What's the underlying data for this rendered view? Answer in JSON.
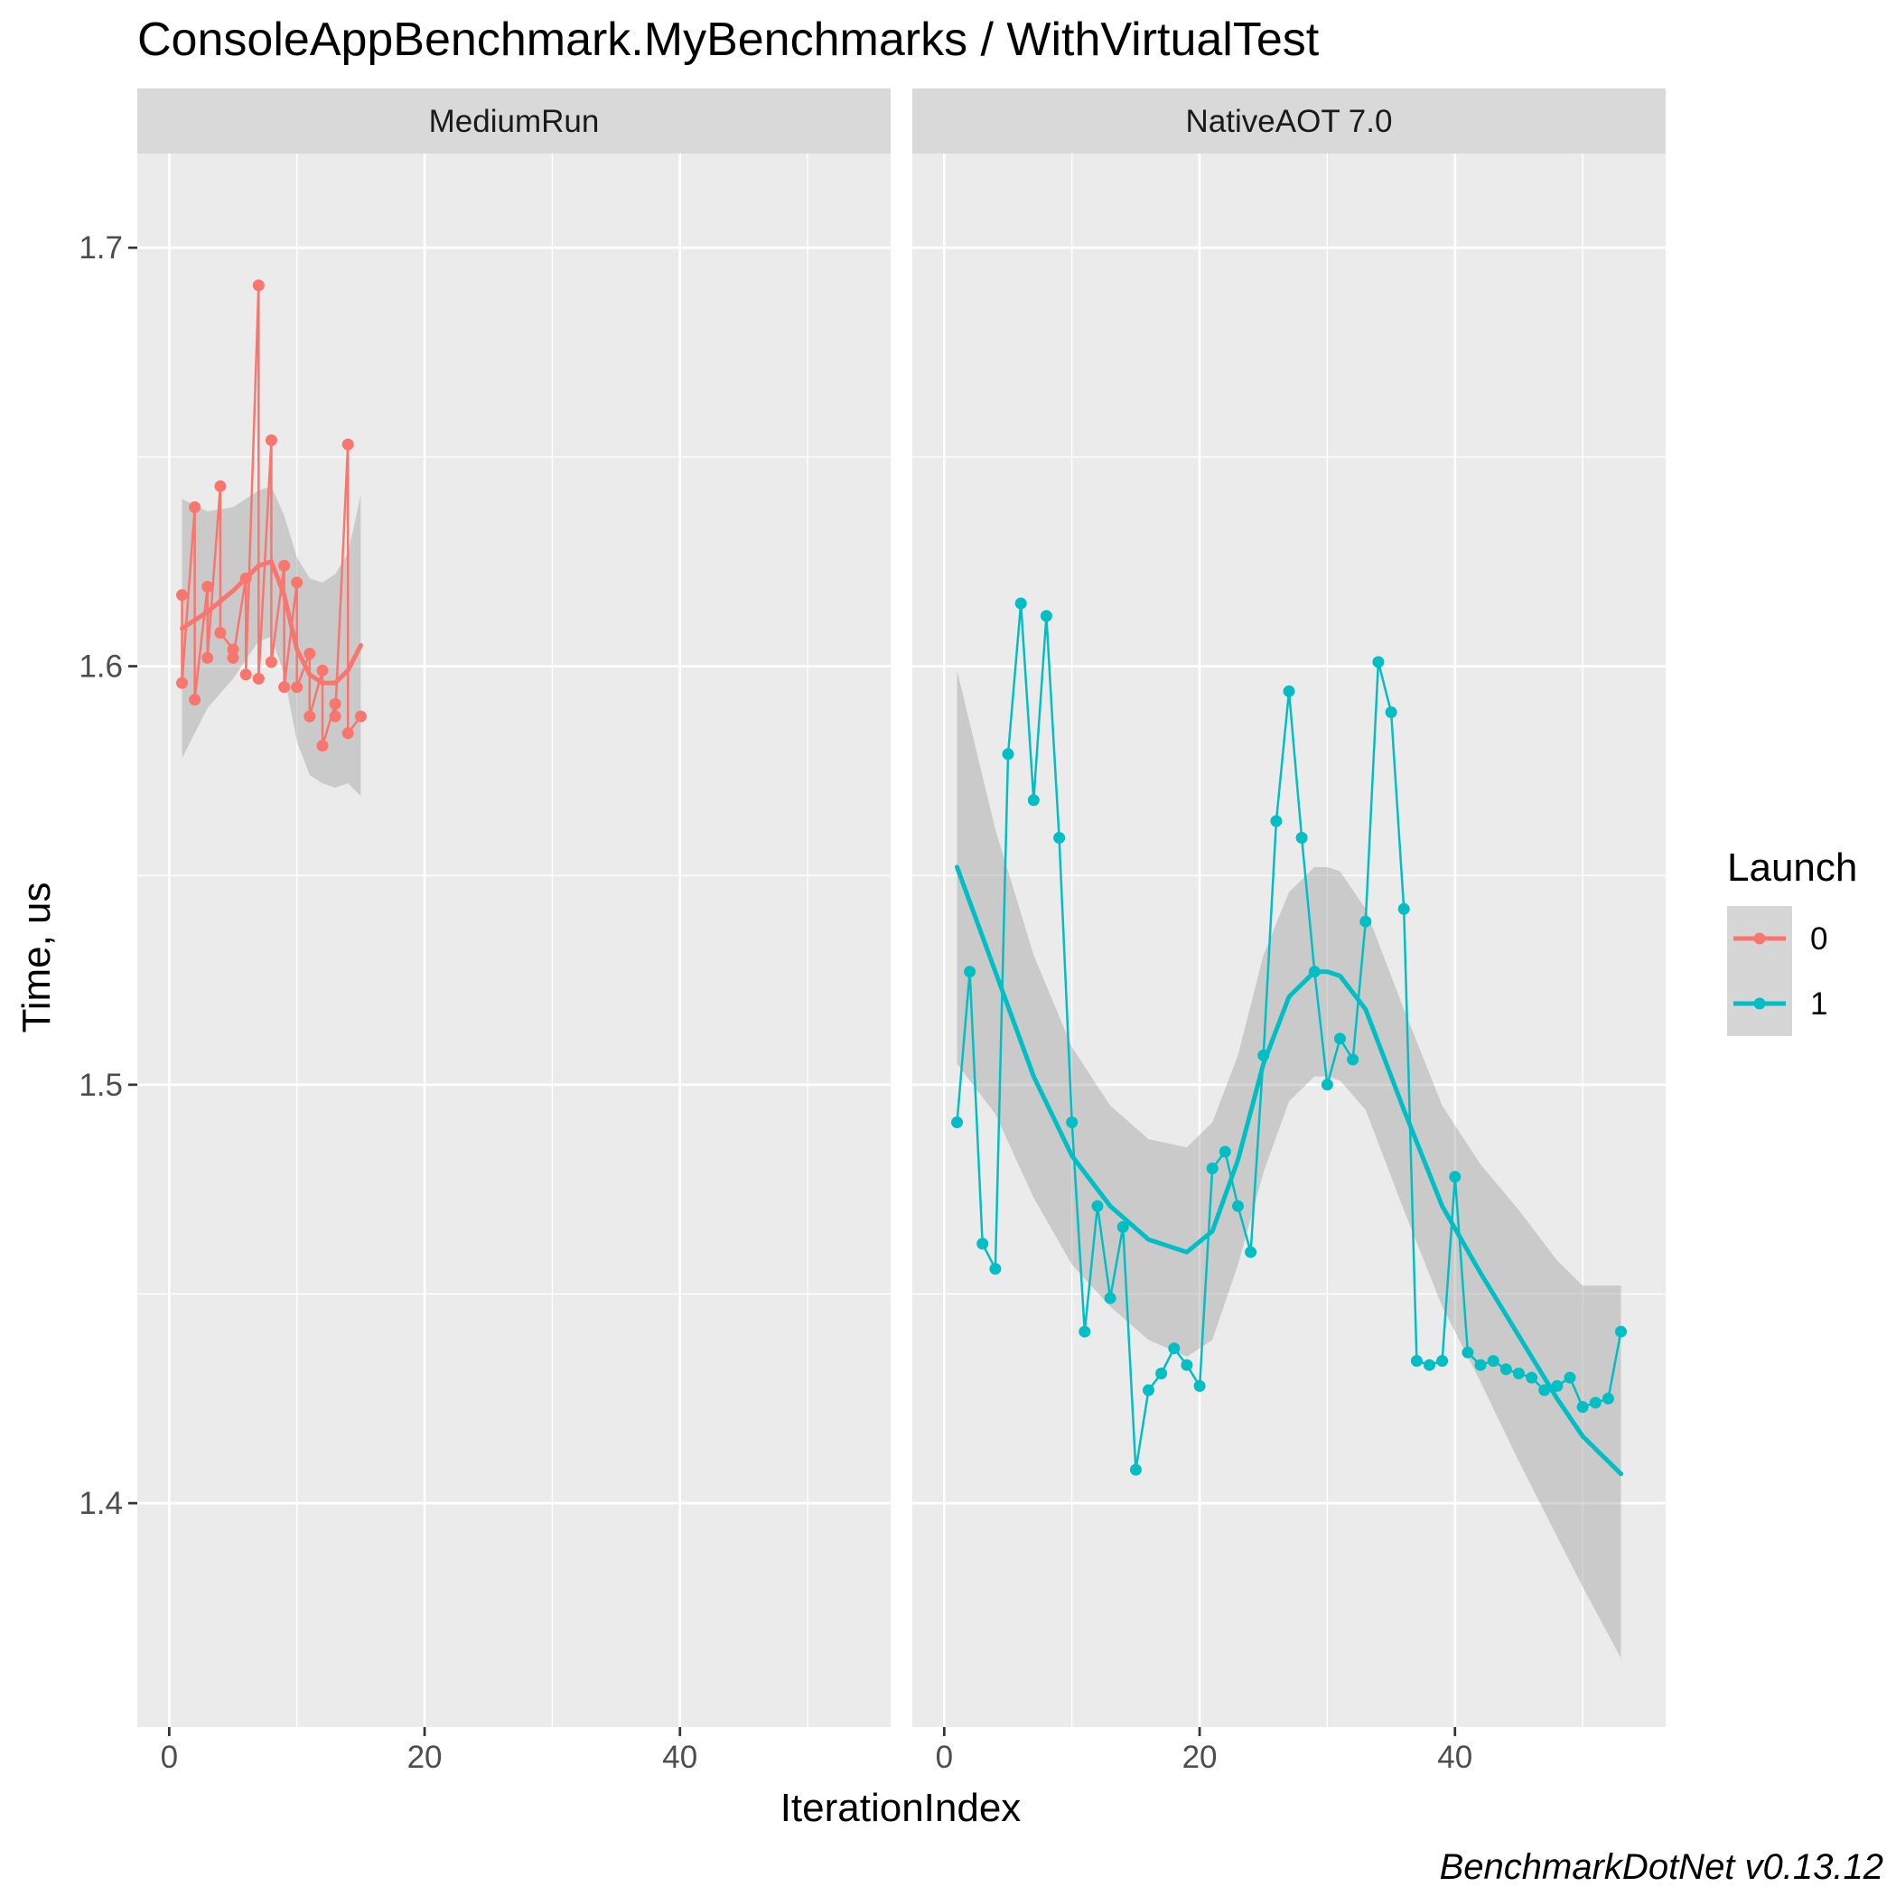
{
  "chart_data": {
    "type": "line",
    "title": "ConsoleAppBenchmark.MyBenchmarks / WithVirtualTest",
    "xlabel": "IterationIndex",
    "ylabel": "Time, us",
    "caption": "BenchmarkDotNet v0.13.12",
    "xlim": [
      -2.5,
      56.5
    ],
    "ylim": [
      1.3465,
      1.7225
    ],
    "x_ticks": [
      0,
      20,
      40
    ],
    "y_ticks": [
      1.4,
      1.5,
      1.6,
      1.7
    ],
    "y_tick_labels": [
      "1.4",
      "1.5",
      "1.6",
      "1.7"
    ],
    "legend": {
      "title": "Launch",
      "position": "right",
      "entries": [
        {
          "label": "0",
          "color": "#F8766D"
        },
        {
          "label": "1",
          "color": "#00BFC4"
        }
      ]
    },
    "colors": {
      "panel_bg": "#EBEBEB",
      "strip_bg": "#D9D9D9",
      "grid": "#FFFFFF",
      "ribbon": "#999999"
    },
    "facets": [
      {
        "strip_label": "MediumRun",
        "series": [
          {
            "name": "0",
            "color": "#F8766D",
            "x": [
              1,
              1,
              2,
              2,
              3,
              3,
              4,
              4,
              5,
              5,
              6,
              6,
              7,
              7,
              8,
              8,
              9,
              9,
              10,
              10,
              11,
              11,
              12,
              12,
              13,
              13,
              14,
              14,
              15
            ],
            "y": [
              1.617,
              1.596,
              1.638,
              1.592,
              1.619,
              1.602,
              1.643,
              1.608,
              1.604,
              1.602,
              1.621,
              1.598,
              1.691,
              1.597,
              1.654,
              1.601,
              1.624,
              1.595,
              1.62,
              1.595,
              1.603,
              1.588,
              1.599,
              1.581,
              1.591,
              1.588,
              1.653,
              1.584,
              1.588
            ],
            "smooth": {
              "x": [
                1,
                3,
                5,
                7,
                8,
                9,
                10,
                11,
                12,
                13,
                14,
                15
              ],
              "y": [
                1.609,
                1.613,
                1.618,
                1.624,
                1.625,
                1.617,
                1.604,
                1.598,
                1.596,
                1.596,
                1.599,
                1.605
              ],
              "lower": [
                1.578,
                1.59,
                1.597,
                1.606,
                1.607,
                1.598,
                1.582,
                1.574,
                1.572,
                1.571,
                1.572,
                1.569
              ],
              "upper": [
                1.64,
                1.637,
                1.638,
                1.642,
                1.643,
                1.636,
                1.626,
                1.621,
                1.62,
                1.622,
                1.627,
                1.641
              ]
            }
          }
        ]
      },
      {
        "strip_label": "NativeAOT 7.0",
        "series": [
          {
            "name": "1",
            "color": "#00BFC4",
            "x": [
              1,
              2,
              3,
              4,
              5,
              6,
              7,
              8,
              9,
              10,
              11,
              12,
              13,
              14,
              15,
              16,
              17,
              18,
              19,
              20,
              21,
              22,
              23,
              24,
              25,
              26,
              27,
              28,
              29,
              30,
              31,
              32,
              33,
              34,
              35,
              36,
              37,
              38,
              39,
              40,
              41,
              42,
              43,
              44,
              45,
              46,
              47,
              48,
              49,
              50,
              51,
              52,
              53
            ],
            "y": [
              1.491,
              1.527,
              1.462,
              1.456,
              1.579,
              1.615,
              1.568,
              1.612,
              1.559,
              1.491,
              1.441,
              1.471,
              1.449,
              1.466,
              1.408,
              1.427,
              1.431,
              1.437,
              1.433,
              1.428,
              1.48,
              1.484,
              1.471,
              1.46,
              1.507,
              1.563,
              1.594,
              1.559,
              1.527,
              1.5,
              1.511,
              1.506,
              1.539,
              1.601,
              1.589,
              1.542,
              1.434,
              1.433,
              1.434,
              1.478,
              1.436,
              1.433,
              1.434,
              1.432,
              1.431,
              1.43,
              1.427,
              1.428,
              1.43,
              1.423,
              1.424,
              1.425,
              1.441
            ],
            "smooth": {
              "x": [
                1,
                4,
                7,
                10,
                13,
                16,
                19,
                21,
                23,
                25,
                27,
                29,
                30,
                31,
                33,
                36,
                39,
                42,
                45,
                48,
                50,
                53
              ],
              "y": [
                1.552,
                1.527,
                1.502,
                1.483,
                1.471,
                1.463,
                1.46,
                1.465,
                1.482,
                1.505,
                1.521,
                1.527,
                1.527,
                1.526,
                1.518,
                1.494,
                1.471,
                1.455,
                1.44,
                1.425,
                1.416,
                1.407
              ],
              "lower": [
                1.505,
                1.493,
                1.473,
                1.457,
                1.447,
                1.439,
                1.435,
                1.439,
                1.457,
                1.479,
                1.496,
                1.502,
                1.502,
                1.501,
                1.494,
                1.47,
                1.447,
                1.429,
                1.41,
                1.392,
                1.38,
                1.363
              ],
              "upper": [
                1.599,
                1.561,
                1.531,
                1.509,
                1.495,
                1.487,
                1.485,
                1.491,
                1.507,
                1.531,
                1.546,
                1.552,
                1.552,
                1.551,
                1.542,
                1.518,
                1.495,
                1.481,
                1.47,
                1.458,
                1.452,
                1.452
              ]
            }
          }
        ]
      }
    ]
  }
}
